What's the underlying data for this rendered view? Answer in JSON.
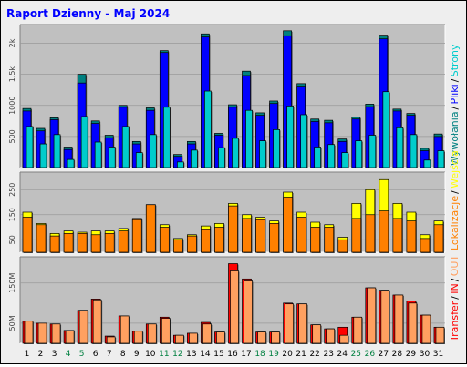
{
  "report": {
    "title": "Raport Dzienny -  Maj 2024",
    "colors": {
      "background": "#eeeeee",
      "panel": "#c0c0c0",
      "wizyty": "#00cc00",
      "pliki": "#0000ff",
      "strony": "#00cccc",
      "wywolania": "#008080",
      "wejscia": "#ffff00",
      "lokalizacje": "#ff8000",
      "transfer_in": "#ff0000",
      "transfer_out": "#ffa060"
    }
  },
  "chart_data": [
    {
      "type": "bar",
      "panel": "hits",
      "ylim": [
        0,
        2300
      ],
      "y_ticks": [
        500,
        1000,
        1500,
        2000
      ],
      "y_tick_labels": [
        "500",
        "1000",
        "1.5k",
        "2k"
      ],
      "legend": [
        {
          "label": "Wywołania",
          "color": "#008080"
        },
        {
          "label": "Pliki",
          "color": "#0000ff"
        },
        {
          "label": "Strony",
          "color": "#00cccc"
        }
      ],
      "categories": [
        "1",
        "2",
        "3",
        "4",
        "5",
        "6",
        "7",
        "8",
        "9",
        "10",
        "11",
        "12",
        "13",
        "14",
        "15",
        "16",
        "17",
        "18",
        "19",
        "20",
        "21",
        "22",
        "23",
        "24",
        "25",
        "26",
        "27",
        "28",
        "29",
        "30",
        "31"
      ],
      "weekend_days": [
        "4",
        "5",
        "11",
        "12",
        "18",
        "19",
        "25",
        "26"
      ],
      "series": [
        {
          "name": "Wywołania",
          "values": [
            950,
            630,
            800,
            330,
            1500,
            750,
            520,
            1000,
            420,
            960,
            1880,
            210,
            420,
            2150,
            550,
            1010,
            1550,
            880,
            1070,
            2200,
            1350,
            780,
            760,
            460,
            810,
            1020,
            2130,
            940,
            870,
            310,
            540
          ]
        },
        {
          "name": "Pliki",
          "values": [
            910,
            590,
            770,
            290,
            1360,
            710,
            480,
            970,
            380,
            920,
            1850,
            180,
            380,
            2100,
            520,
            970,
            1480,
            840,
            1030,
            2120,
            1310,
            740,
            720,
            420,
            780,
            980,
            2070,
            910,
            840,
            270,
            500
          ]
        },
        {
          "name": "Strony",
          "values": [
            660,
            380,
            530,
            130,
            820,
            410,
            330,
            660,
            240,
            530,
            970,
            90,
            280,
            1230,
            320,
            470,
            920,
            430,
            610,
            990,
            850,
            330,
            370,
            240,
            430,
            520,
            1220,
            640,
            530,
            120,
            270
          ]
        }
      ]
    },
    {
      "type": "bar",
      "panel": "visits",
      "ylim": [
        0,
        320
      ],
      "y_ticks": [
        50,
        150,
        250
      ],
      "y_tick_labels": [
        "50",
        "150",
        "250"
      ],
      "legend": [
        {
          "label": "Lokalizacje",
          "color": "#ff8000"
        },
        {
          "label": "Wejścia",
          "color": "#ffff00"
        }
      ],
      "categories": [
        "1",
        "2",
        "3",
        "4",
        "5",
        "6",
        "7",
        "8",
        "9",
        "10",
        "11",
        "12",
        "13",
        "14",
        "15",
        "16",
        "17",
        "18",
        "19",
        "20",
        "21",
        "22",
        "23",
        "24",
        "25",
        "26",
        "27",
        "28",
        "29",
        "30",
        "31"
      ],
      "series": [
        {
          "name": "Wejścia",
          "values": [
            160,
            115,
            75,
            85,
            80,
            85,
            85,
            95,
            135,
            190,
            110,
            55,
            70,
            105,
            115,
            195,
            150,
            140,
            125,
            240,
            160,
            120,
            110,
            60,
            195,
            250,
            290,
            195,
            160,
            70,
            125
          ]
        },
        {
          "name": "Lokalizacje",
          "values": [
            140,
            110,
            65,
            75,
            75,
            70,
            75,
            85,
            130,
            190,
            100,
            50,
            65,
            90,
            100,
            185,
            135,
            130,
            115,
            220,
            140,
            100,
            100,
            50,
            135,
            150,
            165,
            135,
            125,
            55,
            110
          ]
        }
      ]
    },
    {
      "type": "bar",
      "panel": "transfer",
      "ylim": [
        0,
        215
      ],
      "y_ticks": [
        50,
        150
      ],
      "y_tick_labels": [
        "50M",
        "150M"
      ],
      "legend": [
        {
          "label": "Transfer",
          "color": "#ff0000"
        },
        {
          "label": "IN",
          "color": "#ff0000"
        },
        {
          "label": "OUT",
          "color": "#ffa060"
        }
      ],
      "categories": [
        "1",
        "2",
        "3",
        "4",
        "5",
        "6",
        "7",
        "8",
        "9",
        "10",
        "11",
        "12",
        "13",
        "14",
        "15",
        "16",
        "17",
        "18",
        "19",
        "20",
        "21",
        "22",
        "23",
        "24",
        "25",
        "26",
        "27",
        "28",
        "29",
        "30",
        "31"
      ],
      "series": [
        {
          "name": "IN",
          "values": [
            55,
            50,
            48,
            32,
            82,
            110,
            18,
            68,
            30,
            48,
            65,
            20,
            25,
            52,
            28,
            198,
            160,
            28,
            28,
            100,
            98,
            46,
            36,
            40,
            65,
            138,
            132,
            120,
            105,
            70,
            40
          ]
        },
        {
          "name": "OUT",
          "values": [
            55,
            50,
            48,
            32,
            82,
            108,
            16,
            68,
            30,
            48,
            62,
            20,
            25,
            48,
            28,
            180,
            155,
            28,
            28,
            98,
            98,
            46,
            36,
            20,
            65,
            138,
            132,
            120,
            100,
            70,
            40
          ]
        }
      ]
    }
  ]
}
